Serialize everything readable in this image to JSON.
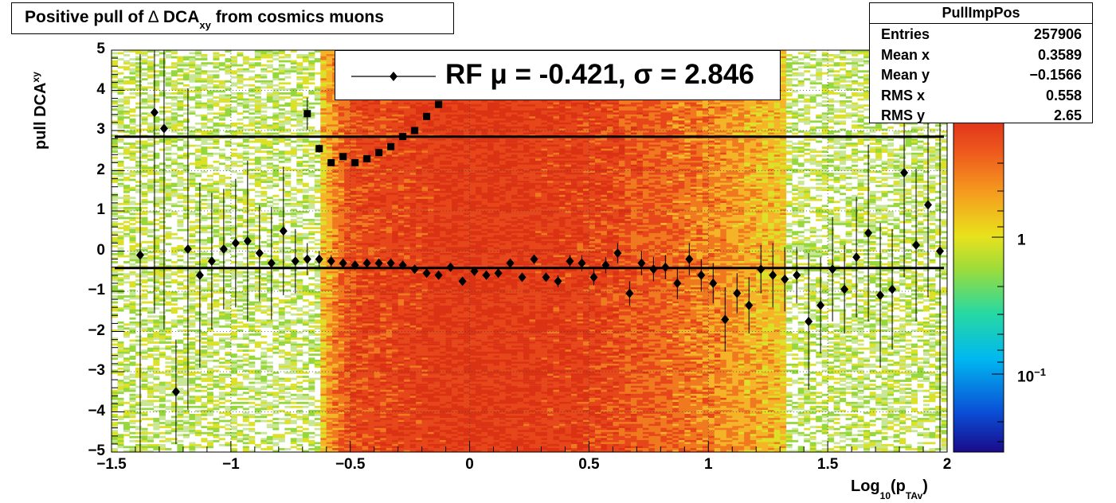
{
  "title": {
    "prefix": "Positive pull of ",
    "delta": "∆",
    "dca": " DCA",
    "sub": "xy",
    "suffix": "  from cosmics muons"
  },
  "stats": {
    "name": "PullImpPos",
    "rows": [
      {
        "label": "Entries",
        "value": "257906"
      },
      {
        "label": "Mean x",
        "value": "0.3589"
      },
      {
        "label": "Mean y",
        "value": "−0.1566"
      },
      {
        "label": "RMS x",
        "value": "0.558"
      },
      {
        "label": "RMS y",
        "value": "2.65"
      }
    ]
  },
  "legend": {
    "text": "RF μ = -0.421, σ =   2.846"
  },
  "axes": {
    "ylabel_main": "pull DCA",
    "ylabel_sub": "xy",
    "xlabel_main": "Log",
    "xlabel_base_sub": "10",
    "xlabel_paren": "(p",
    "xlabel_sub": "TAv",
    "xlabel_close": ")",
    "x_ticks": [
      "−1.5",
      "−1",
      "−0.5",
      "0",
      "0.5",
      "1",
      "1.5",
      "2"
    ],
    "y_ticks": [
      "5",
      "4",
      "3",
      "2",
      "1",
      "0",
      "−1",
      "−2",
      "−3",
      "−4",
      "−5"
    ],
    "z_ticks": [
      {
        "label": "1",
        "exp": ""
      },
      {
        "label": "10",
        "exp": "−1"
      }
    ]
  },
  "chart_data": {
    "type": "heatmap",
    "xlim": [
      -1.5,
      2.0
    ],
    "ylim": [
      -5,
      5
    ],
    "colorscale": "rainbow",
    "z_scale": "log",
    "grid": true,
    "density_profile_x": [
      {
        "x": -1.5,
        "level": 0.35
      },
      {
        "x": -1.0,
        "level": 0.35
      },
      {
        "x": -0.65,
        "level": 0.45
      },
      {
        "x": -0.5,
        "level": 0.85
      },
      {
        "x": 0.0,
        "level": 0.95
      },
      {
        "x": 0.5,
        "level": 0.9
      },
      {
        "x": 1.0,
        "level": 0.7
      },
      {
        "x": 1.5,
        "level": 0.4
      },
      {
        "x": 2.0,
        "level": 0.35
      }
    ],
    "series": [
      {
        "name": "mean",
        "marker": "diamond",
        "x": [
          -1.38,
          -1.32,
          -1.28,
          -1.23,
          -1.18,
          -1.13,
          -1.08,
          -1.03,
          -0.98,
          -0.93,
          -0.88,
          -0.83,
          -0.78,
          -0.73,
          -0.68,
          -0.63,
          -0.58,
          -0.53,
          -0.48,
          -0.43,
          -0.38,
          -0.33,
          -0.28,
          -0.23,
          -0.18,
          -0.13,
          -0.08,
          -0.03,
          0.02,
          0.07,
          0.12,
          0.17,
          0.22,
          0.27,
          0.32,
          0.37,
          0.42,
          0.47,
          0.52,
          0.57,
          0.62,
          0.67,
          0.72,
          0.77,
          0.82,
          0.87,
          0.92,
          0.97,
          1.02,
          1.07,
          1.12,
          1.17,
          1.22,
          1.27,
          1.32,
          1.37,
          1.42,
          1.47,
          1.52,
          1.57,
          1.62,
          1.67,
          1.72,
          1.77,
          1.82,
          1.87,
          1.92,
          1.97
        ],
        "y": [
          -0.1,
          3.45,
          3.05,
          -3.5,
          0.05,
          -0.6,
          -0.25,
          0.05,
          0.2,
          0.25,
          -0.05,
          -0.3,
          0.5,
          -0.25,
          -0.2,
          -0.2,
          -0.25,
          -0.3,
          -0.35,
          -0.3,
          -0.3,
          -0.3,
          -0.35,
          -0.45,
          -0.55,
          -0.6,
          -0.4,
          -0.75,
          -0.5,
          -0.6,
          -0.55,
          -0.3,
          -0.65,
          -0.2,
          -0.65,
          -0.75,
          -0.25,
          -0.3,
          -0.65,
          -0.35,
          -0.05,
          -1.05,
          -0.3,
          -0.45,
          -0.4,
          -0.8,
          -0.2,
          -0.6,
          -0.8,
          -1.7,
          -1.05,
          -1.35,
          -0.45,
          -0.6,
          -0.7,
          -0.6,
          -1.75,
          -1.35,
          -0.45,
          -0.95,
          -0.15,
          0.45,
          -1.1,
          -0.95,
          1.95,
          0.15,
          1.15,
          0.0
        ],
        "yerr": [
          5.0,
          5.0,
          5.0,
          1.3,
          4.0,
          2.3,
          1.7,
          1.5,
          1.6,
          2.0,
          1.2,
          1.4,
          1.6,
          0.8,
          0.4,
          0.2,
          0.15,
          0.12,
          0.1,
          0.1,
          0.1,
          0.1,
          0.1,
          0.1,
          0.1,
          0.1,
          0.1,
          0.1,
          0.1,
          0.1,
          0.1,
          0.1,
          0.1,
          0.1,
          0.1,
          0.15,
          0.15,
          0.2,
          0.2,
          0.2,
          0.25,
          0.3,
          0.3,
          0.3,
          0.3,
          0.4,
          0.4,
          0.4,
          0.5,
          0.8,
          0.5,
          0.7,
          0.6,
          0.8,
          0.8,
          0.7,
          1.7,
          1.2,
          1.3,
          1.1,
          1.5,
          2.2,
          1.8,
          1.5,
          2.6,
          1.9,
          2.3,
          5.0
        ]
      },
      {
        "name": "rms",
        "marker": "square",
        "x": [
          -0.68,
          -0.63,
          -0.58,
          -0.53,
          -0.48,
          -0.43,
          -0.38,
          -0.33,
          -0.28,
          -0.23,
          -0.18,
          -0.13
        ],
        "y": [
          3.42,
          2.55,
          2.2,
          2.35,
          2.2,
          2.3,
          2.45,
          2.6,
          2.85,
          3.0,
          3.35,
          3.65
        ],
        "yerr": [
          0.4,
          0.1,
          0.06,
          0.05,
          0.05,
          0.05,
          0.05,
          0.05,
          0.05,
          0.05,
          0.05,
          0.05
        ]
      }
    ],
    "fit_lines": [
      {
        "name": "mean_fit",
        "y": -0.421
      },
      {
        "name": "sigma_fit",
        "y": 2.846
      }
    ]
  }
}
